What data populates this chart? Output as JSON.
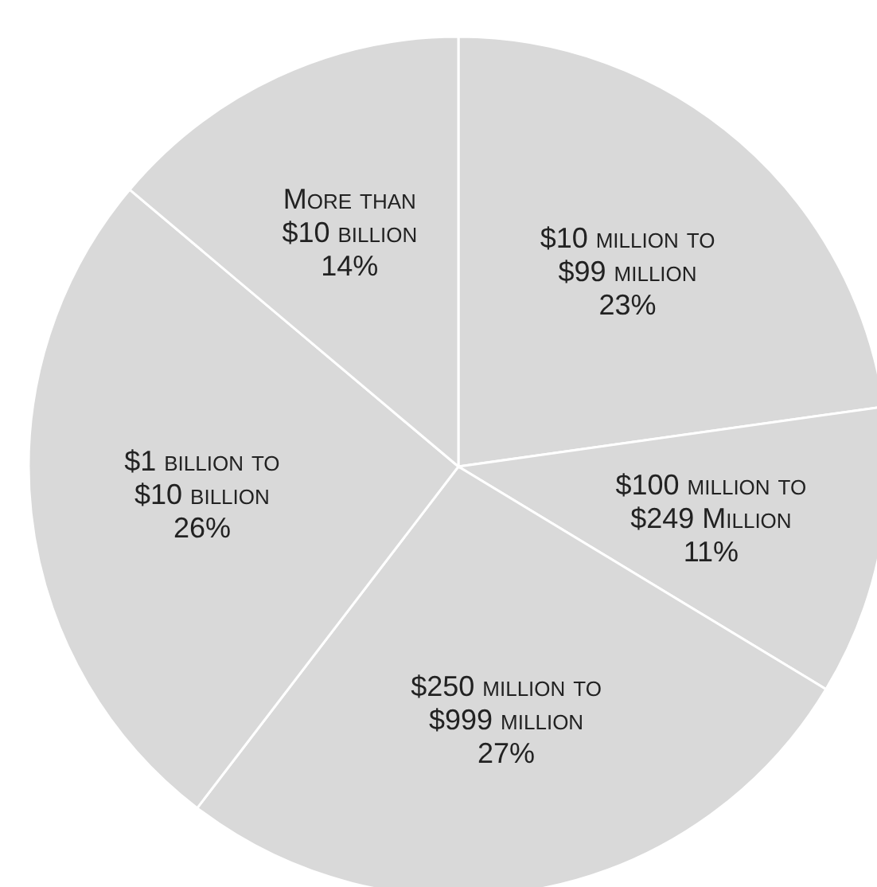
{
  "chart_data": {
    "type": "pie",
    "categories": [
      "$10 million to $99 million",
      "$100 million to $249 Million",
      "$250 million to $999 million",
      "$1 billion to $10 billion",
      "More than $10 billion"
    ],
    "values": [
      23,
      11,
      27,
      26,
      14
    ],
    "colors": [
      "#d9d9d9",
      "#d9d9d9",
      "#d9d9d9",
      "#d9d9d9",
      "#d9d9d9"
    ],
    "value_labels": [
      "23%",
      "11%",
      "27%",
      "26%",
      "14%"
    ],
    "legend": false
  }
}
